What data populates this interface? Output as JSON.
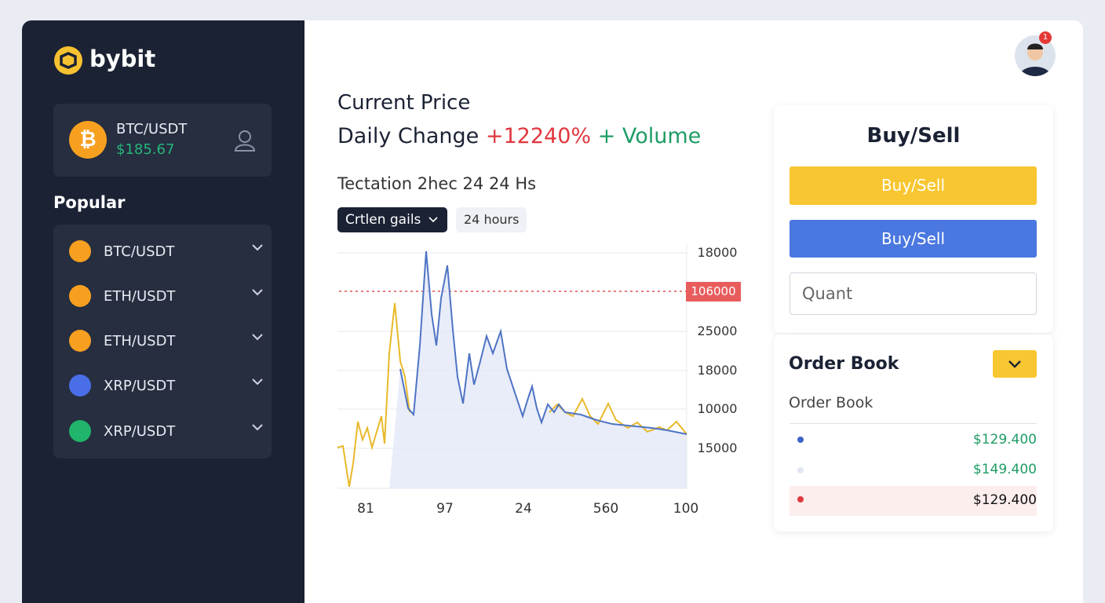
{
  "sidebar": {
    "logo": "bybit",
    "current": {
      "pair": "BTC/USDT",
      "price": "$185.67"
    },
    "popular_title": "Popular",
    "pairs": [
      "BTC/USDT",
      "ETH/USDT",
      "ETH/USDT",
      "XRP/USDT",
      "XRP/USDT"
    ]
  },
  "header": {
    "notifications": 1
  },
  "main": {
    "title": "Current Price",
    "change_label": "Daily Change",
    "change_value": "+12240%",
    "change_suffix": "+ Volume",
    "caption": "Tectation 2hec 24 24 Hs",
    "controls": [
      "Crtlen gails",
      "24 hours"
    ],
    "chart": {
      "y_labels": [
        "18000",
        "25000",
        "18000",
        "10000",
        "15000"
      ],
      "marker_label": "106000",
      "x_labels": [
        "81",
        "97",
        "24",
        "560",
        "100"
      ]
    }
  },
  "trade": {
    "title": "Buy/Sell",
    "buttons": [
      "Buy/Sell",
      "Buy/Sell"
    ],
    "quantity_placeholder": "Quant",
    "order_book": {
      "title": "Order Book",
      "subtitle": "Order Book",
      "rows": [
        "$129.400",
        "$149.400",
        "$129.400"
      ]
    }
  }
}
